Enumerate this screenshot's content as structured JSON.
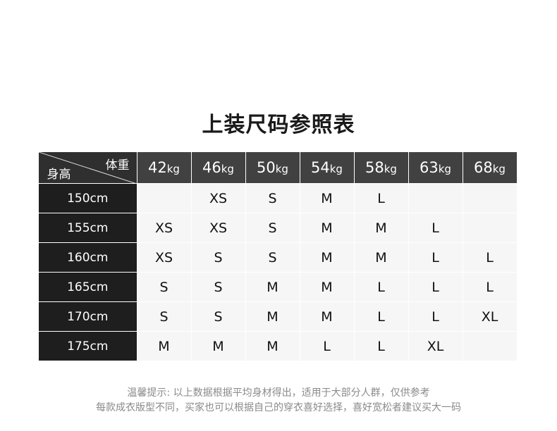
{
  "title": "上装尺码参照表",
  "corner": {
    "weight_label": "体重",
    "height_label": "身高"
  },
  "unit": "kg",
  "weights": [
    "42",
    "46",
    "50",
    "54",
    "58",
    "63",
    "68"
  ],
  "rows": [
    {
      "height": "150cm",
      "sizes": [
        "",
        "XS",
        "S",
        "M",
        "L",
        "",
        ""
      ]
    },
    {
      "height": "155cm",
      "sizes": [
        "XS",
        "XS",
        "S",
        "M",
        "M",
        "L",
        ""
      ]
    },
    {
      "height": "160cm",
      "sizes": [
        "XS",
        "S",
        "S",
        "M",
        "M",
        "L",
        "L"
      ]
    },
    {
      "height": "165cm",
      "sizes": [
        "S",
        "S",
        "M",
        "M",
        "L",
        "L",
        "L"
      ]
    },
    {
      "height": "170cm",
      "sizes": [
        "S",
        "S",
        "M",
        "M",
        "L",
        "L",
        "XL"
      ]
    },
    {
      "height": "175cm",
      "sizes": [
        "M",
        "M",
        "M",
        "L",
        "L",
        "XL",
        ""
      ]
    }
  ],
  "notes": [
    "温馨提示: 以上数据根据平均身材得出，适用于大部分人群，仅供参考",
    "每款成衣版型不同，买家也可以根据自己的穿衣喜好选择，喜好宽松者建议买大一码"
  ]
}
